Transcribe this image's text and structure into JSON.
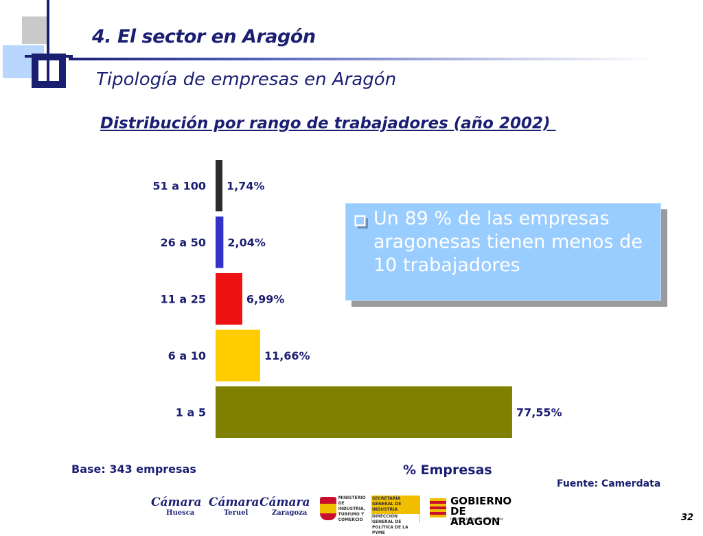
{
  "header": {
    "section_title": "4. El sector en Aragón",
    "subtitle": "Tipología de empresas en Aragón",
    "chart_title": "Distribución por rango de trabajadores (año 2002) "
  },
  "chart_data": {
    "type": "bar",
    "orientation": "horizontal",
    "title": "Distribución por rango de trabajadores (año 2002)",
    "xlabel": "% Empresas",
    "ylabel": "",
    "categories": [
      "51 a 100",
      "26 a 50",
      "11 a 25",
      "6 a 10",
      "1 a 5"
    ],
    "values": [
      1.74,
      2.04,
      6.99,
      11.66,
      77.55
    ],
    "value_labels": [
      "1,74%",
      "2,04%",
      "6,99%",
      "11,66%",
      "77,55%"
    ],
    "colors": [
      "#2b2b2b",
      "#3333cc",
      "#ee1111",
      "#ffcc00",
      "#808000"
    ],
    "xlim": [
      0,
      100
    ],
    "grid": false,
    "legend": "none"
  },
  "callout": {
    "text": "Un  89 % de las empresas aragonesas tienen menos de 10 trabajadores",
    "color": "#99ccff"
  },
  "footer": {
    "base_note": "Base: 343 empresas",
    "source_note": "Fuente: Camerdata",
    "page_number": "32",
    "logos": {
      "camara_huesca": {
        "name": "Cámara",
        "city": "Huesca"
      },
      "camara_teruel": {
        "name": "Cámara",
        "city": "Teruel"
      },
      "camara_zaragoza": {
        "name": "Cámara",
        "city": "Zaragoza"
      },
      "ministerio": {
        "lines": [
          "MINISTERIO DE INDUSTRIA, TURISMO Y COMERCIO"
        ],
        "right_lines": [
          "SECRETARÍA GENERAL DE INDUSTRIA",
          "DIRECCIÓN GENERAL DE POLÍTICA DE LA PYME"
        ]
      },
      "gobierno": {
        "title_line1": "GOBIERNO",
        "title_line2": "DE ARAGON",
        "sub": "Instituto Aragonés de Fomento"
      }
    }
  }
}
